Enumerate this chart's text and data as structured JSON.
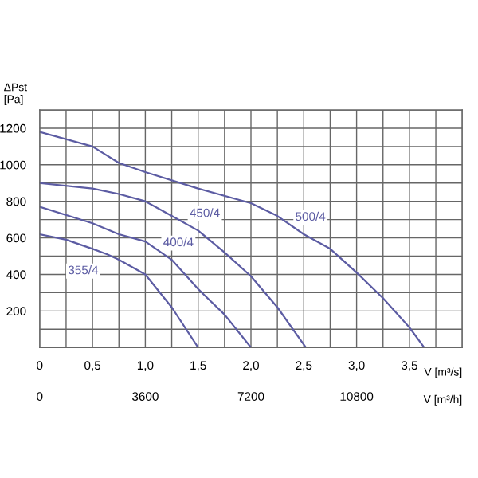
{
  "chart_data": {
    "type": "line",
    "xlabel": "V [m³/s]",
    "x2label": "V [m³/h]",
    "ylabel": "ΔPst\n[Pa]",
    "xlim": [
      0,
      4
    ],
    "ylim": [
      0,
      1300
    ],
    "x2lim": [
      0,
      14400
    ],
    "grid": true,
    "legend": false,
    "marker": "none",
    "line_style": "solid",
    "xticks": [
      0,
      {
        "value": 0.25,
        "label": null
      },
      {
        "value": 0.5,
        "label": "0,5"
      },
      {
        "value": 0.75,
        "label": null
      },
      {
        "value": 1,
        "label": "1,0"
      },
      {
        "value": 1.25,
        "label": null
      },
      {
        "value": 1.5,
        "label": "1,5"
      },
      {
        "value": 1.75,
        "label": null
      },
      {
        "value": 2,
        "label": "2,0"
      },
      {
        "value": 2.25,
        "label": null
      },
      {
        "value": 2.5,
        "label": "2,5"
      },
      {
        "value": 2.75,
        "label": null
      },
      {
        "value": 3,
        "label": "3,0"
      },
      {
        "value": 3.25,
        "label": null
      },
      {
        "value": 3.5,
        "label": "3,5"
      },
      {
        "value": 3.75,
        "label": null
      },
      {
        "value": 4,
        "label": null
      }
    ],
    "x2ticks": [
      0,
      3600,
      7200,
      10800
    ],
    "yticks": [
      {
        "value": 0,
        "label": null
      },
      {
        "value": 100,
        "label": null
      },
      200,
      {
        "value": 300,
        "label": null
      },
      400,
      {
        "value": 500,
        "label": null
      },
      600,
      {
        "value": 700,
        "label": null
      },
      800,
      {
        "value": 900,
        "label": null
      },
      1000,
      {
        "value": 1100,
        "label": null
      },
      1200,
      {
        "value": 1300,
        "label": null
      }
    ],
    "series": [
      {
        "name": "500/4",
        "color": "#5c5ca3",
        "x": [
          0,
          0.5,
          0.75,
          1.0,
          1.5,
          2.0,
          2.25,
          2.5,
          2.75,
          3.0,
          3.25,
          3.5,
          3.64
        ],
        "values": [
          1180,
          1100,
          1010,
          960,
          870,
          790,
          720,
          620,
          540,
          410,
          270,
          110,
          0
        ]
      },
      {
        "name": "450/4",
        "color": "#5c5ca3",
        "x": [
          0,
          0.5,
          0.75,
          1.0,
          1.25,
          1.5,
          1.75,
          2.0,
          2.25,
          2.52
        ],
        "values": [
          900,
          870,
          840,
          800,
          720,
          640,
          520,
          390,
          220,
          0
        ]
      },
      {
        "name": "400/4",
        "color": "#5c5ca3",
        "x": [
          0,
          0.5,
          0.75,
          1.0,
          1.25,
          1.5,
          1.75,
          2.0
        ],
        "values": [
          770,
          680,
          620,
          580,
          480,
          320,
          180,
          0
        ]
      },
      {
        "name": "355/4",
        "color": "#5c5ca3",
        "x": [
          0,
          0.25,
          0.5,
          0.64,
          0.75,
          1.0,
          1.25,
          1.5
        ],
        "values": [
          620,
          590,
          540,
          510,
          480,
          400,
          220,
          0
        ]
      }
    ]
  }
}
